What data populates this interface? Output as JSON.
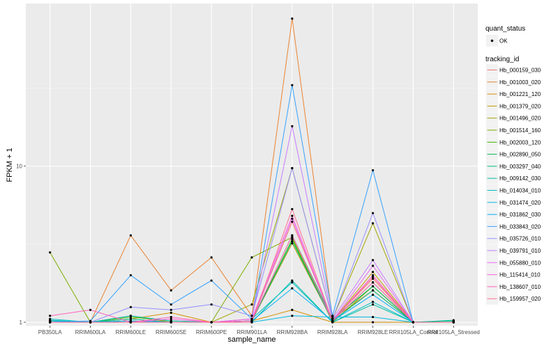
{
  "chart_data": {
    "type": "line",
    "xlabel": "sample_name",
    "ylabel": "FPKM + 1",
    "y_scale": "log10",
    "ylim": [
      0.95,
      110
    ],
    "y_ticks": [
      1,
      10
    ],
    "y_tick_labels": [
      "1",
      "10"
    ],
    "grid": true,
    "legend_placement": "right",
    "categories": [
      "PB350LA",
      "RRIM600LA",
      "RRIM600LE",
      "RRIM600SE",
      "RRIM600PE",
      "RRIM901LA",
      "RRIM928BA",
      "RRIM928LA",
      "RRIM928LE",
      "RRII105LA_Control",
      "RRII105LA_Stressed"
    ],
    "point_legend": {
      "title": "quant_status",
      "entries": [
        "OK"
      ]
    },
    "line_legend_title": "tracking_id",
    "series": [
      {
        "name": "Hb_000159_030",
        "color": "#F8766D",
        "values": [
          1.0,
          1.0,
          1.02,
          1.0,
          1.0,
          1.02,
          4.4,
          1.03,
          1.9,
          1.0,
          1.02
        ]
      },
      {
        "name": "Hb_001003_020",
        "color": "#EA8331",
        "values": [
          1.0,
          1.0,
          3.6,
          1.6,
          2.6,
          1.1,
          88,
          1.05,
          1.6,
          1.0,
          1.0
        ]
      },
      {
        "name": "Hb_001221_120",
        "color": "#D89000",
        "values": [
          1.02,
          1.0,
          1.05,
          1.15,
          1.0,
          1.02,
          1.2,
          1.0,
          1.0,
          1.0,
          1.0
        ]
      },
      {
        "name": "Hb_001379_020",
        "color": "#C09B00",
        "values": [
          1.0,
          1.0,
          1.1,
          1.0,
          1.0,
          1.02,
          3.2,
          1.02,
          2.1,
          1.0,
          1.0
        ]
      },
      {
        "name": "Hb_001496_020",
        "color": "#A3A500",
        "values": [
          1.0,
          1.0,
          1.0,
          1.0,
          1.0,
          1.3,
          9.7,
          1.05,
          4.3,
          1.0,
          1.0
        ]
      },
      {
        "name": "Hb_001514_160",
        "color": "#7CAE00",
        "values": [
          2.8,
          1.0,
          1.05,
          1.0,
          1.0,
          2.6,
          3.5,
          1.0,
          1.7,
          1.0,
          1.0
        ]
      },
      {
        "name": "Hb_002003_120",
        "color": "#39B600",
        "values": [
          1.0,
          1.0,
          1.08,
          1.02,
          1.0,
          1.02,
          3.4,
          1.02,
          1.8,
          1.0,
          1.0
        ]
      },
      {
        "name": "Hb_002890_050",
        "color": "#00BB4E",
        "values": [
          1.0,
          1.0,
          1.02,
          1.0,
          1.0,
          1.02,
          3.6,
          1.05,
          1.7,
          1.0,
          1.0
        ]
      },
      {
        "name": "Hb_003297_040",
        "color": "#00BF7D",
        "values": [
          1.0,
          1.0,
          1.0,
          1.0,
          1.0,
          1.02,
          3.3,
          1.02,
          1.6,
          1.0,
          1.02
        ]
      },
      {
        "name": "Hb_009142_030",
        "color": "#00C1A3",
        "values": [
          1.03,
          1.0,
          1.05,
          1.0,
          1.0,
          1.0,
          1.85,
          1.0,
          1.3,
          1.0,
          1.03
        ]
      },
      {
        "name": "Hb_014034_010",
        "color": "#00BFC4",
        "values": [
          1.05,
          1.0,
          1.1,
          1.02,
          1.0,
          1.05,
          1.8,
          1.0,
          1.35,
          1.0,
          1.0
        ]
      },
      {
        "name": "Hb_031474_020",
        "color": "#00BAE0",
        "values": [
          1.0,
          1.0,
          1.0,
          1.0,
          1.0,
          1.0,
          1.1,
          1.08,
          1.08,
          1.0,
          1.0
        ]
      },
      {
        "name": "Hb_031862_030",
        "color": "#00B0F6",
        "values": [
          1.02,
          1.0,
          1.02,
          1.0,
          1.0,
          1.02,
          1.65,
          1.02,
          1.5,
          1.0,
          1.0
        ]
      },
      {
        "name": "Hb_033843_020",
        "color": "#35A2FF",
        "values": [
          1.0,
          1.02,
          2.0,
          1.3,
          1.85,
          1.05,
          33,
          1.1,
          9.4,
          1.0,
          1.0
        ]
      },
      {
        "name": "Hb_035726_010",
        "color": "#9590FF",
        "values": [
          1.0,
          1.0,
          1.25,
          1.2,
          1.3,
          1.1,
          9.7,
          1.05,
          5.0,
          1.0,
          1.0
        ]
      },
      {
        "name": "Hb_039791_010",
        "color": "#C77CFF",
        "values": [
          1.0,
          1.0,
          1.0,
          1.0,
          1.0,
          1.05,
          18,
          1.05,
          2.5,
          1.0,
          1.0
        ]
      },
      {
        "name": "Hb_055880_010",
        "color": "#E76BF3",
        "values": [
          1.0,
          1.0,
          1.0,
          1.0,
          1.0,
          1.02,
          4.6,
          1.02,
          2.3,
          1.0,
          1.0
        ]
      },
      {
        "name": "Hb_115414_010",
        "color": "#FA62DB",
        "values": [
          1.0,
          1.0,
          1.0,
          1.05,
          1.0,
          1.05,
          4.8,
          1.02,
          2.0,
          1.0,
          1.0
        ]
      },
      {
        "name": "Hb_138607_010",
        "color": "#FF62BC",
        "values": [
          1.1,
          1.2,
          1.0,
          1.08,
          1.0,
          1.02,
          3.6,
          1.02,
          1.8,
          1.0,
          1.0
        ]
      },
      {
        "name": "Hb_159957_020",
        "color": "#FF6C91",
        "values": [
          1.0,
          1.0,
          1.0,
          1.0,
          1.0,
          1.0,
          5.3,
          1.02,
          1.95,
          1.0,
          1.0
        ]
      }
    ]
  }
}
